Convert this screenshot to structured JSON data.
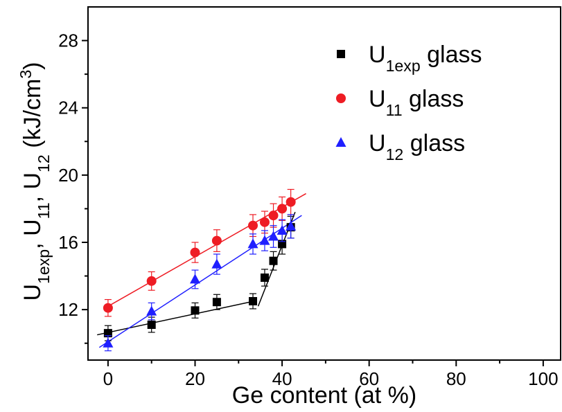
{
  "chart_data": {
    "type": "scatter",
    "xlabel": "Ge content (at %)",
    "ylabel": [
      {
        "t": "U"
      },
      {
        "t": "1exp",
        "s": "sub"
      },
      {
        "t": ", U"
      },
      {
        "t": "11",
        "s": "sub"
      },
      {
        "t": ", U"
      },
      {
        "t": "12",
        "s": "sub"
      },
      {
        "t": " (kJ/cm"
      },
      {
        "t": "3",
        "s": "super"
      },
      {
        "t": ")"
      }
    ],
    "x": [
      0,
      10,
      20,
      25,
      33.3,
      36,
      38,
      40,
      42
    ],
    "series": [
      {
        "name": [
          {
            "t": "U"
          },
          {
            "t": "1exp",
            "s": "sub"
          },
          {
            "t": " glass"
          }
        ],
        "color": "#000000",
        "marker": "square",
        "values": [
          10.6,
          11.1,
          11.95,
          12.45,
          12.5,
          13.9,
          14.9,
          15.9,
          16.9
        ],
        "errors": [
          0.45,
          0.45,
          0.45,
          0.45,
          0.45,
          0.5,
          0.55,
          0.6,
          0.65
        ]
      },
      {
        "name": [
          {
            "t": "U"
          },
          {
            "t": "11",
            "s": "sub"
          },
          {
            "t": " glass"
          }
        ],
        "color": "#ee1c24",
        "marker": "circle",
        "values": [
          12.1,
          13.7,
          15.4,
          16.1,
          17.0,
          17.2,
          17.6,
          18.0,
          18.4
        ],
        "errors": [
          0.5,
          0.55,
          0.6,
          0.65,
          0.65,
          0.65,
          0.7,
          0.7,
          0.75
        ]
      },
      {
        "name": [
          {
            "t": "U"
          },
          {
            "t": "12",
            "s": "sub"
          },
          {
            "t": " glass"
          }
        ],
        "color": "#1f1fff",
        "marker": "triangle",
        "values": [
          10.0,
          11.9,
          13.8,
          14.7,
          15.9,
          16.1,
          16.35,
          16.7,
          16.95
        ],
        "errors": [
          0.45,
          0.5,
          0.55,
          0.6,
          0.6,
          0.6,
          0.65,
          0.65,
          0.7
        ]
      }
    ],
    "fits": [
      {
        "color": "#000000",
        "x": [
          -2.5,
          33.5
        ],
        "y": [
          10.5,
          12.5
        ]
      },
      {
        "color": "#000000",
        "x": [
          34.5,
          43
        ],
        "y": [
          12.2,
          17.8
        ]
      },
      {
        "color": "#ee1c24",
        "x": [
          -1,
          45.5
        ],
        "y": [
          12.05,
          18.9
        ]
      },
      {
        "color": "#1f1fff",
        "x": [
          -2,
          44.5
        ],
        "y": [
          9.75,
          17.6
        ]
      }
    ],
    "xlim": [
      -4.6,
      104
    ],
    "ylim": [
      9,
      30
    ],
    "xticks": [
      0,
      20,
      40,
      60,
      80,
      100
    ],
    "yticks": [
      12,
      16,
      20,
      24,
      28
    ],
    "xticks_minor": [
      10,
      30,
      50,
      70,
      90
    ],
    "yticks_minor": [
      10,
      14,
      18,
      22,
      26
    ]
  }
}
